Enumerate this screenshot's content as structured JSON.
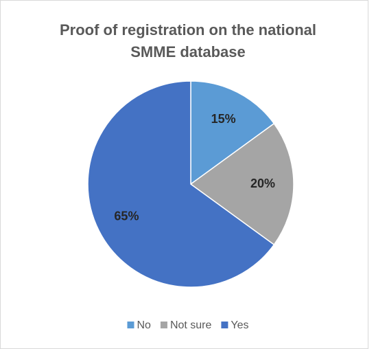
{
  "chart_data": {
    "type": "pie",
    "title": "Proof of registration on the national SMME database",
    "categories": [
      "No",
      "Not sure",
      "Yes"
    ],
    "values": [
      15,
      20,
      65
    ],
    "value_labels": [
      "15%",
      "20%",
      "65%"
    ],
    "colors": [
      "#5b9bd5",
      "#a5a5a5",
      "#4472c4"
    ],
    "legend": "bottom"
  }
}
